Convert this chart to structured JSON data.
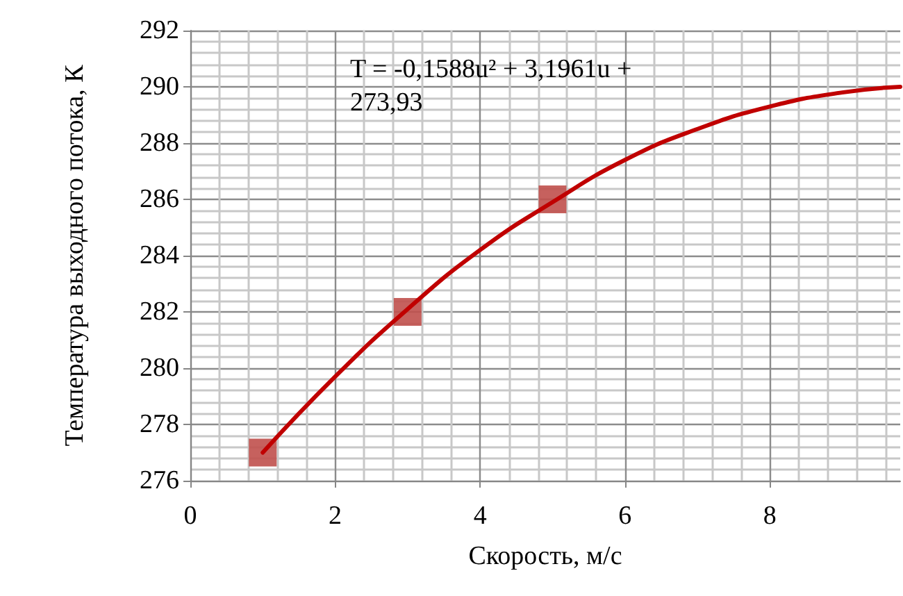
{
  "chart_data": {
    "type": "scatter",
    "xlabel": "Скорость, м/с",
    "ylabel": "Температура выходного потока, К",
    "annotations": [
      "T = -0,1588u² + 3,1961u + 273,93"
    ],
    "series": [
      {
        "type": "scatter",
        "color": "#c0504d",
        "marker": "square",
        "x": [
          1,
          3,
          5
        ],
        "values": [
          277,
          282,
          286
        ]
      },
      {
        "type": "line",
        "color": "#c00000",
        "marker": "none",
        "x": [
          1,
          2,
          3,
          4,
          5,
          6,
          7,
          8,
          9,
          9.8
        ],
        "values": [
          277.0,
          279.7,
          282.1,
          284.2,
          285.9,
          287.4,
          288.5,
          289.3,
          289.8,
          290.0
        ]
      }
    ],
    "xlim": [
      0,
      9.8
    ],
    "xticks": [
      0,
      2,
      4,
      6,
      8
    ],
    "ylim": [
      276,
      292
    ],
    "yticks": [
      276,
      278,
      280,
      282,
      284,
      286,
      288,
      290,
      292
    ],
    "grid": true
  }
}
